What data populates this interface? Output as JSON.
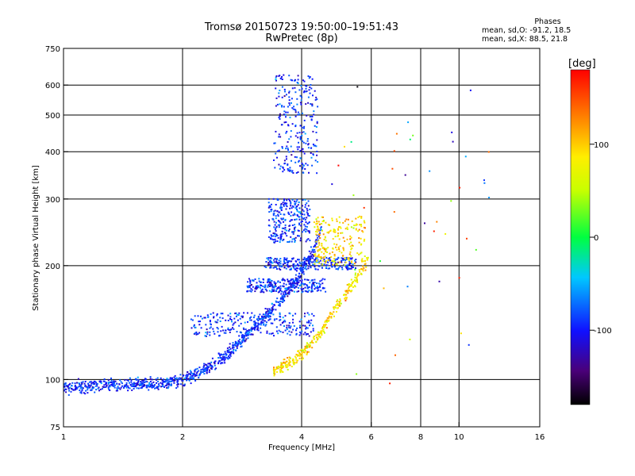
{
  "chart_data": {
    "type": "scatter",
    "title": "Tromsø 20150723 19:50:00–19:51:43",
    "subtitle": "RwPretec (8p)",
    "xlabel": "Frequency [MHz]",
    "ylabel": "Stationary phase Virtual Height [km]",
    "x_scale": "log",
    "y_scale": "log",
    "xlim": [
      1,
      16
    ],
    "ylim": [
      75,
      750
    ],
    "x_ticks": [
      1,
      2,
      4,
      6,
      8,
      10,
      16
    ],
    "y_ticks": [
      75,
      100,
      200,
      300,
      400,
      500,
      600,
      750
    ],
    "grid": true,
    "colorbar": {
      "label": "[deg]",
      "range": [
        -180,
        180
      ],
      "ticks": [
        100,
        0,
        -100
      ]
    },
    "phases_legend": {
      "title": "Phases",
      "o_mode": "mean, sd,O: -91.2, 18.5",
      "x_mode": "mean, sd,X:  88.5, 21.8"
    },
    "series": [
      {
        "mode": "O",
        "phase_mean_deg": -91.2,
        "phase_sd_deg": 18.5,
        "trace": [
          [
            1.0,
            95
          ],
          [
            1.2,
            96
          ],
          [
            1.4,
            97
          ],
          [
            1.6,
            97
          ],
          [
            1.8,
            98
          ],
          [
            2.0,
            100
          ],
          [
            2.2,
            104
          ],
          [
            2.5,
            113
          ],
          [
            2.8,
            125
          ],
          [
            3.0,
            135
          ],
          [
            3.3,
            150
          ],
          [
            3.6,
            165
          ],
          [
            3.9,
            185
          ],
          [
            4.2,
            210
          ],
          [
            4.4,
            235
          ],
          [
            4.5,
            250
          ]
        ],
        "branches": [
          {
            "x_range": [
              2.1,
              4.3
            ],
            "y_range": [
              130,
              150
            ]
          },
          {
            "x_range": [
              2.9,
              4.6
            ],
            "y_range": [
              170,
              185
            ]
          },
          {
            "x_range": [
              3.2,
              5.5
            ],
            "y_range": [
              195,
              210
            ]
          },
          {
            "x_range": [
              3.3,
              4.2
            ],
            "y_range": [
              230,
              300
            ]
          },
          {
            "x_range": [
              3.4,
              4.4
            ],
            "y_range": [
              350,
              640
            ]
          }
        ]
      },
      {
        "mode": "X",
        "phase_mean_deg": 88.5,
        "phase_sd_deg": 21.8,
        "trace": [
          [
            3.4,
            105
          ],
          [
            3.8,
            112
          ],
          [
            4.1,
            120
          ],
          [
            4.4,
            130
          ],
          [
            4.7,
            145
          ],
          [
            5.0,
            160
          ],
          [
            5.3,
            175
          ],
          [
            5.6,
            190
          ],
          [
            5.9,
            210
          ]
        ],
        "branches": [
          {
            "x_range": [
              4.3,
              5.8
            ],
            "y_range": [
              200,
              270
            ]
          }
        ]
      }
    ]
  }
}
